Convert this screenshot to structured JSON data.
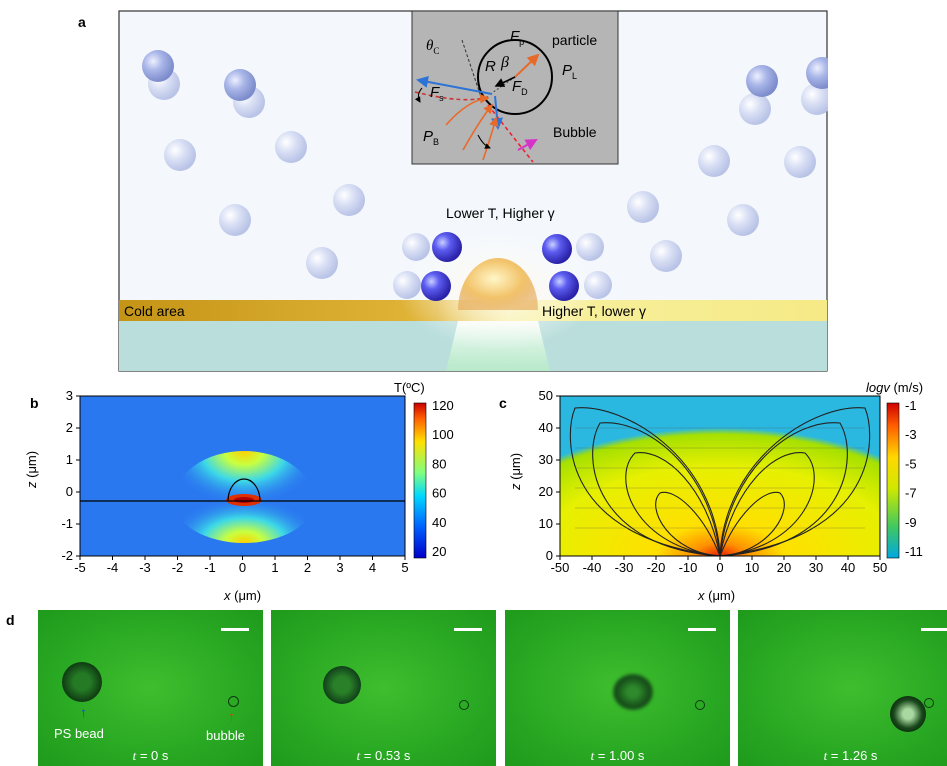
{
  "panels": {
    "a": "a",
    "b": "b",
    "c": "c",
    "d": "d"
  },
  "panel_a": {
    "inset": {
      "theta_c": "θ",
      "theta_c_sub": "C",
      "F_p": "F",
      "F_p_sub": "p",
      "particle": "particle",
      "R": "R",
      "beta": "β",
      "P_L": "P",
      "P_L_sub": "L",
      "F_D": "F",
      "F_D_sub": "D",
      "F_s": "F",
      "F_s_sub": "s",
      "P_B": "P",
      "P_B_sub": "B",
      "bubble": "Bubble"
    },
    "lower_T_label": "Lower T, Higher γ",
    "cold_area_label": "Cold area",
    "higher_T_label": "Higher T, lower γ"
  },
  "panel_b": {
    "colorbar_title": "T(ºC)",
    "colorbar_ticks": [
      "120",
      "100",
      "80",
      "60",
      "40",
      "20"
    ],
    "x_ticks": [
      "-5",
      "-4",
      "-3",
      "-2",
      "-1",
      "0",
      "1",
      "2",
      "3",
      "4",
      "5"
    ],
    "y_ticks": [
      "3",
      "2",
      "1",
      "0",
      "-1",
      "-2"
    ],
    "xlabel_var": "x",
    "xlabel_unit": " (μm)",
    "ylabel_var": "z",
    "ylabel_unit": " (μm)"
  },
  "panel_c": {
    "colorbar_title_var": "logv",
    "colorbar_title_unit": " (m/s)",
    "colorbar_ticks": [
      "-1",
      "-3",
      "-5",
      "-7",
      "-9",
      "-11"
    ],
    "x_ticks": [
      "-50",
      "-40",
      "-30",
      "-20",
      "-10",
      "0",
      "10",
      "20",
      "30",
      "40",
      "50"
    ],
    "y_ticks": [
      "50",
      "40",
      "30",
      "20",
      "10",
      "0"
    ],
    "xlabel_var": "x",
    "xlabel_unit": " (μm)",
    "ylabel_var": "z",
    "ylabel_unit": " (μm)"
  },
  "panel_d": {
    "frames": [
      {
        "t_var": "t",
        "t_val": " = 0 s"
      },
      {
        "t_var": "t",
        "t_val": " = 0.53 s"
      },
      {
        "t_var": "t",
        "t_val": " = 1.00 s"
      },
      {
        "t_var": "t",
        "t_val": " = 1.26 s"
      }
    ],
    "ps_bead_label": "PS bead",
    "bubble_label": "bubble"
  },
  "colors": {
    "cold_band": "#c89a1a",
    "hot_band": "#f4e88a",
    "micro_green": "#2aaa24",
    "inset_bg": "#b0b0b0"
  }
}
